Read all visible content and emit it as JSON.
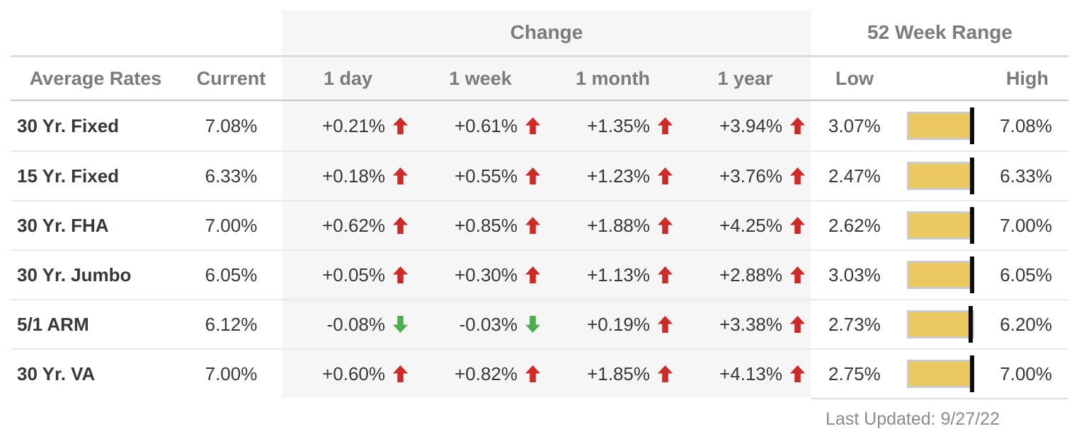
{
  "header": {
    "change_group": "Change",
    "range_group": "52 Week Range",
    "columns": {
      "rates": "Average Rates",
      "current": "Current",
      "day": "1 day",
      "week": "1 week",
      "month": "1 month",
      "year": "1 year",
      "low": "Low",
      "high": "High"
    }
  },
  "rows": [
    {
      "label": "30 Yr. Fixed",
      "current": "7.08%",
      "changes": [
        {
          "value": "+0.21%",
          "dir": "up"
        },
        {
          "value": "+0.61%",
          "dir": "up"
        },
        {
          "value": "+1.35%",
          "dir": "up"
        },
        {
          "value": "+3.94%",
          "dir": "up"
        }
      ],
      "low": "3.07%",
      "high": "7.08%",
      "low_num": 3.07,
      "high_num": 7.08,
      "current_num": 7.08
    },
    {
      "label": "15 Yr. Fixed",
      "current": "6.33%",
      "changes": [
        {
          "value": "+0.18%",
          "dir": "up"
        },
        {
          "value": "+0.55%",
          "dir": "up"
        },
        {
          "value": "+1.23%",
          "dir": "up"
        },
        {
          "value": "+3.76%",
          "dir": "up"
        }
      ],
      "low": "2.47%",
      "high": "6.33%",
      "low_num": 2.47,
      "high_num": 6.33,
      "current_num": 6.33
    },
    {
      "label": "30 Yr. FHA",
      "current": "7.00%",
      "changes": [
        {
          "value": "+0.62%",
          "dir": "up"
        },
        {
          "value": "+0.85%",
          "dir": "up"
        },
        {
          "value": "+1.88%",
          "dir": "up"
        },
        {
          "value": "+4.25%",
          "dir": "up"
        }
      ],
      "low": "2.62%",
      "high": "7.00%",
      "low_num": 2.62,
      "high_num": 7.0,
      "current_num": 7.0
    },
    {
      "label": "30 Yr. Jumbo",
      "current": "6.05%",
      "changes": [
        {
          "value": "+0.05%",
          "dir": "up"
        },
        {
          "value": "+0.30%",
          "dir": "up"
        },
        {
          "value": "+1.13%",
          "dir": "up"
        },
        {
          "value": "+2.88%",
          "dir": "up"
        }
      ],
      "low": "3.03%",
      "high": "6.05%",
      "low_num": 3.03,
      "high_num": 6.05,
      "current_num": 6.05
    },
    {
      "label": "5/1 ARM",
      "current": "6.12%",
      "changes": [
        {
          "value": "-0.08%",
          "dir": "down"
        },
        {
          "value": "-0.03%",
          "dir": "down"
        },
        {
          "value": "+0.19%",
          "dir": "up"
        },
        {
          "value": "+3.38%",
          "dir": "up"
        }
      ],
      "low": "2.73%",
      "high": "6.20%",
      "low_num": 2.73,
      "high_num": 6.2,
      "current_num": 6.12
    },
    {
      "label": "30 Yr. VA",
      "current": "7.00%",
      "changes": [
        {
          "value": "+0.60%",
          "dir": "up"
        },
        {
          "value": "+0.82%",
          "dir": "up"
        },
        {
          "value": "+1.85%",
          "dir": "up"
        },
        {
          "value": "+4.13%",
          "dir": "up"
        }
      ],
      "low": "2.75%",
      "high": "7.00%",
      "low_num": 2.75,
      "high_num": 7.0,
      "current_num": 7.0
    }
  ],
  "footer": {
    "last_updated": "Last Updated: 9/27/22"
  },
  "colors": {
    "up_arrow": "#ce2a27",
    "down_arrow": "#4cae4f",
    "bar_fill": "#ecc95e",
    "bar_border": "#cbcbcb",
    "marker": "#0d0d0d",
    "change_block_bg": "#f6f6f6",
    "header_text": "#7b7b7b"
  }
}
